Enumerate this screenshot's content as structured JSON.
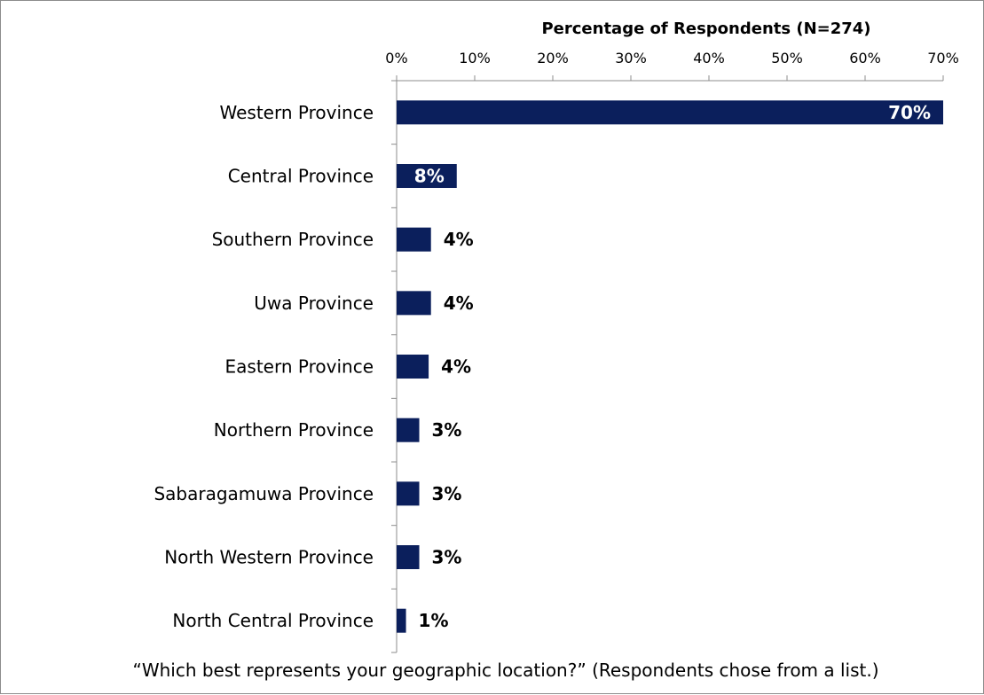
{
  "chart_data": {
    "type": "bar",
    "orientation": "horizontal",
    "xlabel": "Percentage of Respondents (N=274)",
    "xlabel_position": "top",
    "xlim": [
      0,
      70
    ],
    "xticks": [
      0,
      10,
      20,
      30,
      40,
      50,
      60,
      70
    ],
    "tick_suffix": "%",
    "categories": [
      "Western Province",
      "Central Province",
      "Southern Province",
      "Uwa Province",
      "Eastern Province",
      "Northern Province",
      "Sabaragamuwa Province",
      "North Western Province",
      "North Central Province"
    ],
    "values": [
      70,
      7.7,
      4.4,
      4.4,
      4.1,
      2.9,
      2.9,
      2.9,
      1.2
    ],
    "data_labels": [
      "70%",
      "8%",
      "4%",
      "4%",
      "4%",
      "3%",
      "3%",
      "3%",
      "1%"
    ],
    "bar_color": "#0b1f5c",
    "inside_label_color": "#ffffff",
    "outside_label_color": "#000000",
    "grid": false,
    "legend": "none",
    "footnote": "“Which best represents your geographic location?” (Respondents chose from a list.)"
  }
}
